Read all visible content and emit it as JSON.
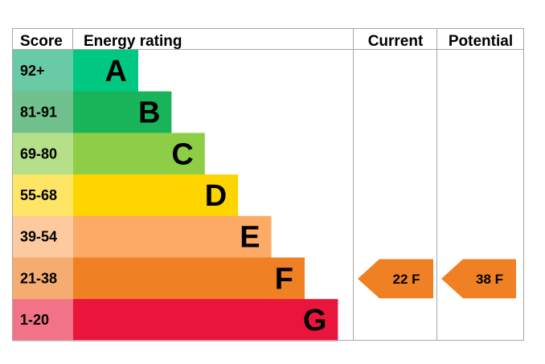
{
  "chart_data": {
    "type": "bar",
    "headers": {
      "score": "Score",
      "rating": "Energy rating",
      "current": "Current",
      "potential": "Potential"
    },
    "bands": [
      {
        "letter": "A",
        "score": "92+",
        "color": "#00c781",
        "score_color": "#68cba5",
        "level": 1
      },
      {
        "letter": "B",
        "score": "81-91",
        "color": "#19b459",
        "score_color": "#70c18e",
        "level": 2
      },
      {
        "letter": "C",
        "score": "69-80",
        "color": "#8dce46",
        "score_color": "#b6df8a",
        "level": 3
      },
      {
        "letter": "D",
        "score": "55-68",
        "color": "#ffd500",
        "score_color": "#ffe566",
        "level": 4
      },
      {
        "letter": "E",
        "score": "39-54",
        "color": "#fcaa65",
        "score_color": "#fdcaa0",
        "level": 5
      },
      {
        "letter": "F",
        "score": "21-38",
        "color": "#ef8023",
        "score_color": "#f4ac70",
        "level": 6
      },
      {
        "letter": "G",
        "score": "1-20",
        "color": "#e9153b",
        "score_color": "#f27388",
        "level": 7
      }
    ],
    "current": {
      "value": 22,
      "band": "F",
      "label": "22  F",
      "color": "#ef8023"
    },
    "potential": {
      "value": 38,
      "band": "F",
      "label": "38  F",
      "color": "#ef8023"
    }
  }
}
